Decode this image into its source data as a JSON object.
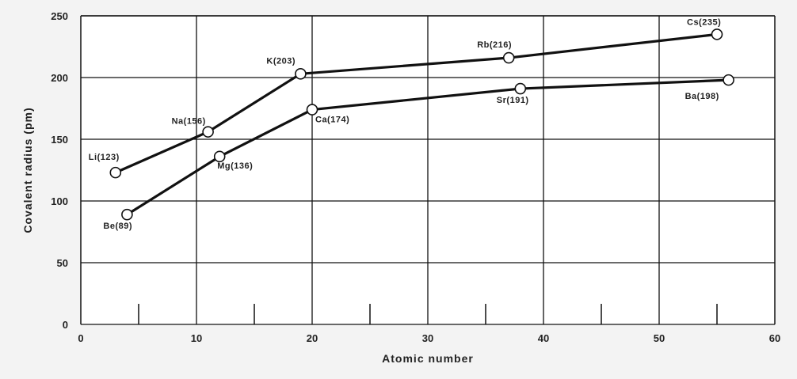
{
  "chart_data": {
    "type": "line",
    "title": "",
    "xlabel": "Atomic number",
    "ylabel": "Covalent radius (pm)",
    "xlim": [
      0,
      60
    ],
    "ylim": [
      0,
      250
    ],
    "xticks": [
      0,
      10,
      20,
      30,
      40,
      50,
      60
    ],
    "yticks": [
      0,
      50,
      100,
      150,
      200,
      250
    ],
    "xtick_labels": [
      "0",
      "10",
      "20",
      "30",
      "40",
      "50",
      "60"
    ],
    "ytick_labels": [
      "0",
      "50",
      "100",
      "150",
      "200",
      "250"
    ],
    "grid": true,
    "legend": "none",
    "colors": {
      "background": "#ffffff",
      "line": "#111111",
      "grid": "#111111",
      "marker_fill": "#ffffff"
    },
    "series": [
      {
        "points": [
          {
            "x": 3,
            "y": 123,
            "label": "Li(123)"
          },
          {
            "x": 11,
            "y": 156,
            "label": "Na(156)"
          },
          {
            "x": 19,
            "y": 203,
            "label": "K(203)"
          },
          {
            "x": 37,
            "y": 216,
            "label": "Rb(216)"
          },
          {
            "x": 55,
            "y": 235,
            "label": "Cs(235)"
          }
        ]
      },
      {
        "points": [
          {
            "x": 4,
            "y": 89,
            "label": "Be(89)"
          },
          {
            "x": 12,
            "y": 136,
            "label": "Mg(136)"
          },
          {
            "x": 20,
            "y": 174,
            "label": "Ca(174)"
          },
          {
            "x": 38,
            "y": 191,
            "label": "Sr(191)"
          },
          {
            "x": 56,
            "y": 198,
            "label": "Ba(198)"
          }
        ]
      }
    ]
  }
}
